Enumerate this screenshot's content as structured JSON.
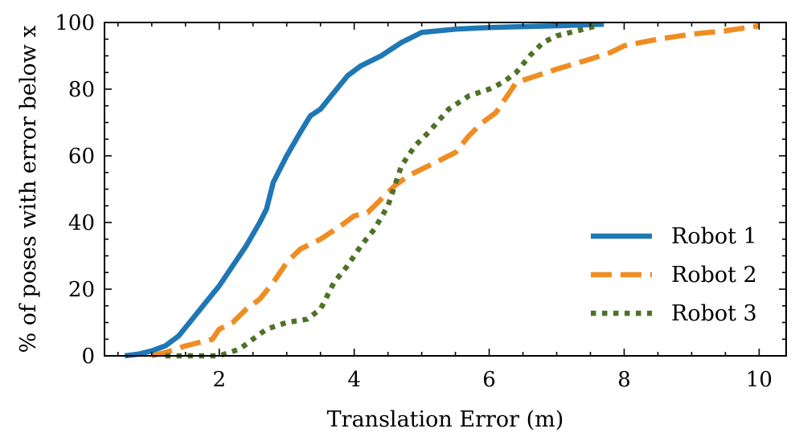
{
  "chart_data": {
    "type": "line",
    "title": "",
    "xlabel": "Translation Error (m)",
    "ylabel": "% of poses with error below x",
    "xlim": [
      0.3,
      10.4
    ],
    "ylim": [
      0,
      100
    ],
    "xticks": [
      2,
      4,
      6,
      8,
      10
    ],
    "yticks": [
      0,
      20,
      40,
      60,
      80,
      100
    ],
    "x_minor_step": 0.5,
    "y_minor_step": 5,
    "ticks_inside": true,
    "grid": false,
    "legend": "lower right",
    "series": [
      {
        "name": "Robot 1",
        "color": "#1f77b4",
        "style": "solid",
        "points": [
          [
            0.6,
            0
          ],
          [
            0.8,
            0.5
          ],
          [
            1.0,
            1.5
          ],
          [
            1.2,
            3
          ],
          [
            1.4,
            6
          ],
          [
            1.6,
            11
          ],
          [
            1.8,
            16
          ],
          [
            2.0,
            21
          ],
          [
            2.2,
            27
          ],
          [
            2.4,
            33
          ],
          [
            2.6,
            40
          ],
          [
            2.7,
            44
          ],
          [
            2.8,
            52
          ],
          [
            3.0,
            60
          ],
          [
            3.2,
            67
          ],
          [
            3.35,
            72
          ],
          [
            3.5,
            74
          ],
          [
            3.7,
            79
          ],
          [
            3.9,
            84
          ],
          [
            4.1,
            87
          ],
          [
            4.4,
            90
          ],
          [
            4.7,
            94
          ],
          [
            5.0,
            97
          ],
          [
            5.5,
            98
          ],
          [
            6.0,
            98.5
          ],
          [
            7.0,
            99
          ],
          [
            7.7,
            99.5
          ]
        ]
      },
      {
        "name": "Robot 2",
        "color": "#ef8d22",
        "style": "dashed",
        "points": [
          [
            1.0,
            0
          ],
          [
            1.2,
            1
          ],
          [
            1.5,
            3
          ],
          [
            1.9,
            5
          ],
          [
            2.0,
            8
          ],
          [
            2.2,
            10
          ],
          [
            2.4,
            14
          ],
          [
            2.6,
            17
          ],
          [
            2.8,
            22
          ],
          [
            3.0,
            28
          ],
          [
            3.2,
            32
          ],
          [
            3.5,
            35
          ],
          [
            3.8,
            39
          ],
          [
            4.0,
            42
          ],
          [
            4.2,
            43
          ],
          [
            4.4,
            47
          ],
          [
            4.6,
            51
          ],
          [
            4.8,
            54
          ],
          [
            5.0,
            56
          ],
          [
            5.3,
            59
          ],
          [
            5.5,
            61
          ],
          [
            5.7,
            66
          ],
          [
            5.9,
            70
          ],
          [
            6.1,
            73
          ],
          [
            6.2,
            76
          ],
          [
            6.4,
            82
          ],
          [
            6.7,
            84
          ],
          [
            7.0,
            86
          ],
          [
            7.5,
            89
          ],
          [
            7.8,
            91
          ],
          [
            8.0,
            93
          ],
          [
            8.5,
            95
          ],
          [
            9.0,
            96.5
          ],
          [
            9.5,
            97.5
          ],
          [
            10.0,
            99
          ]
        ]
      },
      {
        "name": "Robot 3",
        "color": "#4f7128",
        "style": "dotted",
        "points": [
          [
            1.2,
            0
          ],
          [
            2.0,
            0
          ],
          [
            2.3,
            2
          ],
          [
            2.5,
            5
          ],
          [
            2.7,
            8
          ],
          [
            3.0,
            10
          ],
          [
            3.3,
            11
          ],
          [
            3.5,
            14
          ],
          [
            3.7,
            22
          ],
          [
            3.9,
            27
          ],
          [
            4.1,
            33
          ],
          [
            4.3,
            38
          ],
          [
            4.5,
            45
          ],
          [
            4.7,
            57
          ],
          [
            4.9,
            63
          ],
          [
            5.1,
            67
          ],
          [
            5.4,
            74
          ],
          [
            5.7,
            78
          ],
          [
            6.0,
            80
          ],
          [
            6.2,
            82
          ],
          [
            6.4,
            85
          ],
          [
            6.6,
            90
          ],
          [
            6.8,
            94
          ],
          [
            7.0,
            96
          ],
          [
            7.3,
            97.5
          ],
          [
            7.6,
            99
          ]
        ]
      }
    ]
  }
}
